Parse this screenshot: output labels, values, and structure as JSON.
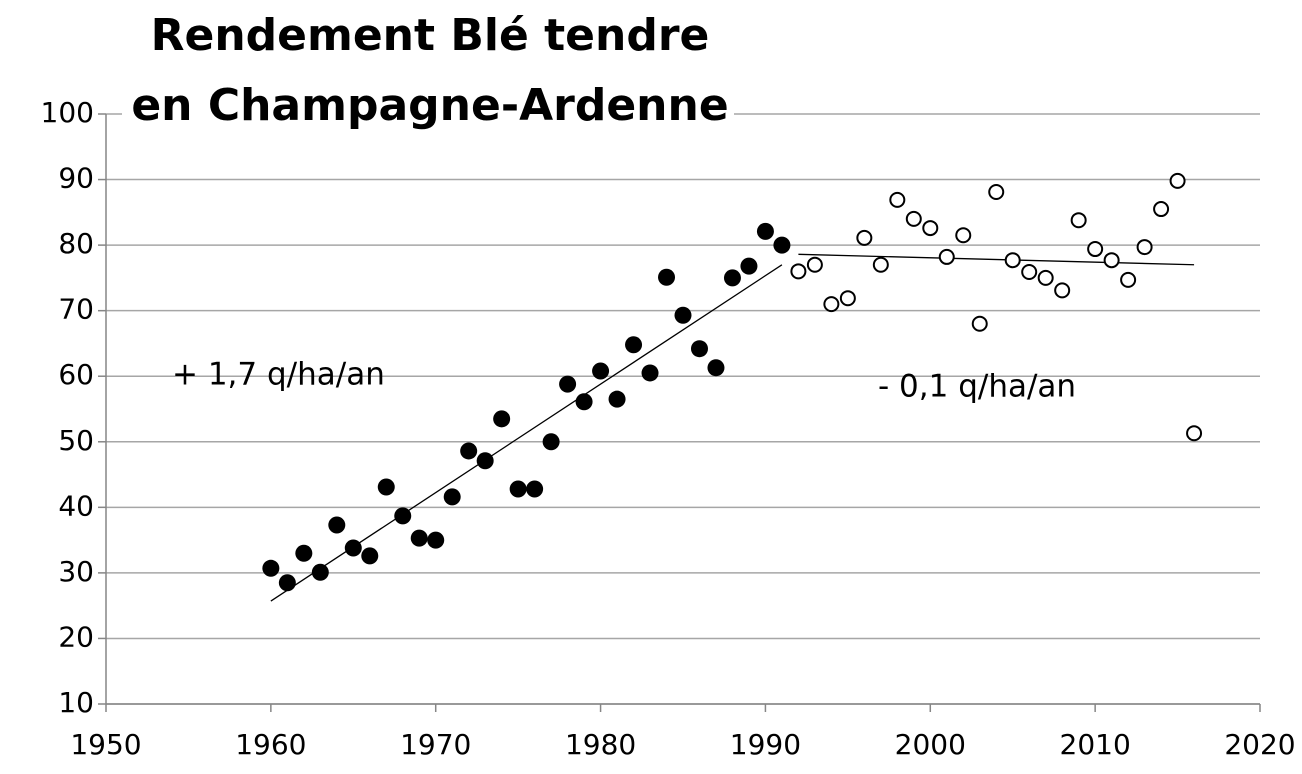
{
  "chart_data": {
    "type": "scatter",
    "title": [
      "Rendement Blé tendre",
      "en Champagne-Ardenne"
    ],
    "xlim": [
      1950,
      2020
    ],
    "xticks": [
      1950,
      1960,
      1970,
      1980,
      1990,
      2000,
      2010,
      2020
    ],
    "ylim": [
      10,
      100
    ],
    "yticks": [
      10,
      20,
      30,
      40,
      50,
      60,
      70,
      80,
      90,
      100
    ],
    "grid": true,
    "color": "#000000",
    "series": [
      {
        "marker": "filled",
        "x": [
          1960,
          1961,
          1962,
          1963,
          1964,
          1965,
          1966,
          1967,
          1968,
          1969,
          1970,
          1971,
          1972,
          1973,
          1974,
          1975,
          1976,
          1977,
          1978,
          1979,
          1980,
          1981,
          1982,
          1983,
          1984,
          1985,
          1986,
          1987,
          1988,
          1989,
          1990,
          1991
        ],
        "values": [
          30.7,
          28.5,
          33.0,
          30.1,
          37.3,
          33.8,
          32.6,
          43.1,
          38.7,
          35.3,
          35.0,
          41.6,
          48.6,
          47.1,
          53.5,
          42.8,
          42.8,
          50.0,
          58.8,
          56.1,
          60.8,
          56.5,
          64.8,
          60.5,
          75.1,
          69.3,
          64.2,
          61.3,
          75.0,
          76.8,
          82.1,
          80.0
        ]
      },
      {
        "marker": "open",
        "x": [
          1992,
          1993,
          1994,
          1995,
          1996,
          1997,
          1998,
          1999,
          2000,
          2001,
          2002,
          2003,
          2004,
          2005,
          2006,
          2007,
          2008,
          2009,
          2010,
          2011,
          2012,
          2013,
          2014,
          2015,
          2016
        ],
        "values": [
          76.0,
          77.0,
          71.0,
          71.9,
          81.1,
          77.0,
          86.9,
          84.0,
          82.6,
          78.2,
          81.5,
          68.0,
          88.1,
          77.7,
          75.9,
          75.0,
          73.1,
          83.8,
          79.4,
          77.7,
          74.7,
          79.7,
          85.5,
          89.8,
          51.3
        ]
      }
    ],
    "trend_lines": [
      {
        "x": [
          1960,
          1991
        ],
        "values": [
          25.7,
          77.0
        ]
      },
      {
        "x": [
          1992,
          2016
        ],
        "values": [
          78.6,
          77.0
        ]
      }
    ],
    "annotations": [
      "+ 1,7 q/ha/an",
      "- 0,1 q/ha/an"
    ]
  }
}
